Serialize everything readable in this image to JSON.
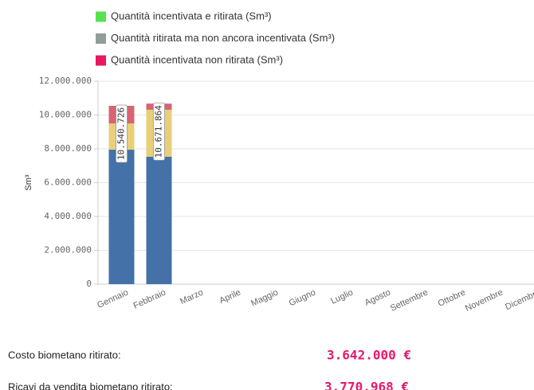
{
  "chart_data": {
    "type": "stacked_bar",
    "y_label": "Sm³",
    "categories": [
      "Gennaio",
      "Febbraio",
      "Marzo",
      "Aprile",
      "Maggio",
      "Giugno",
      "Luglio",
      "Agosto",
      "Settembre",
      "Ottobre",
      "Novembre",
      "Dicembre"
    ],
    "series": [
      {
        "name": "Quantità incentivata e ritirata (Sm³)",
        "legend_color": "#59e053",
        "color": "#4471a8",
        "values": [
          7950000,
          7530000,
          null,
          null,
          null,
          null,
          null,
          null,
          null,
          null,
          null,
          null
        ]
      },
      {
        "name": "Quantità ritirata ma non ancora incentivata (Sm³)",
        "legend_color": "#8f9e97",
        "color": "#e8cf79",
        "values": [
          1550000,
          2780000,
          null,
          null,
          null,
          null,
          null,
          null,
          null,
          null,
          null,
          null
        ]
      },
      {
        "name": "Quantità incentivata non ritirata (Sm³)",
        "legend_color": "#e8185f",
        "color": "#d66473",
        "values": [
          1040726,
          361864,
          null,
          null,
          null,
          null,
          null,
          null,
          null,
          null,
          null,
          null
        ]
      }
    ],
    "totals": [
      10540726,
      10671864,
      null,
      null,
      null,
      null,
      null,
      null,
      null,
      null,
      null,
      null
    ],
    "total_labels": [
      "10.540.726",
      "10.671.864",
      null,
      null,
      null,
      null,
      null,
      null,
      null,
      null,
      null,
      null
    ],
    "ylim": [
      0,
      12000000
    ],
    "yticks": [
      0,
      {
        "value": 2000000,
        "label": "2.000.000"
      },
      {
        "value": 4000000,
        "label": "4.000.000"
      },
      {
        "value": 6000000,
        "label": "6.000.000"
      },
      {
        "value": 8000000,
        "label": "8.000.000"
      },
      {
        "value": 10000000,
        "label": "10.000.000"
      },
      {
        "value": 12000000,
        "label": "12.000.000"
      }
    ],
    "grid": true
  },
  "summary": [
    {
      "label": "Costo biometano ritirato:",
      "value": "3.642.000 €"
    },
    {
      "label": "Ricavi da vendita biometano ritirato:",
      "value": "3.770.968 €"
    }
  ]
}
